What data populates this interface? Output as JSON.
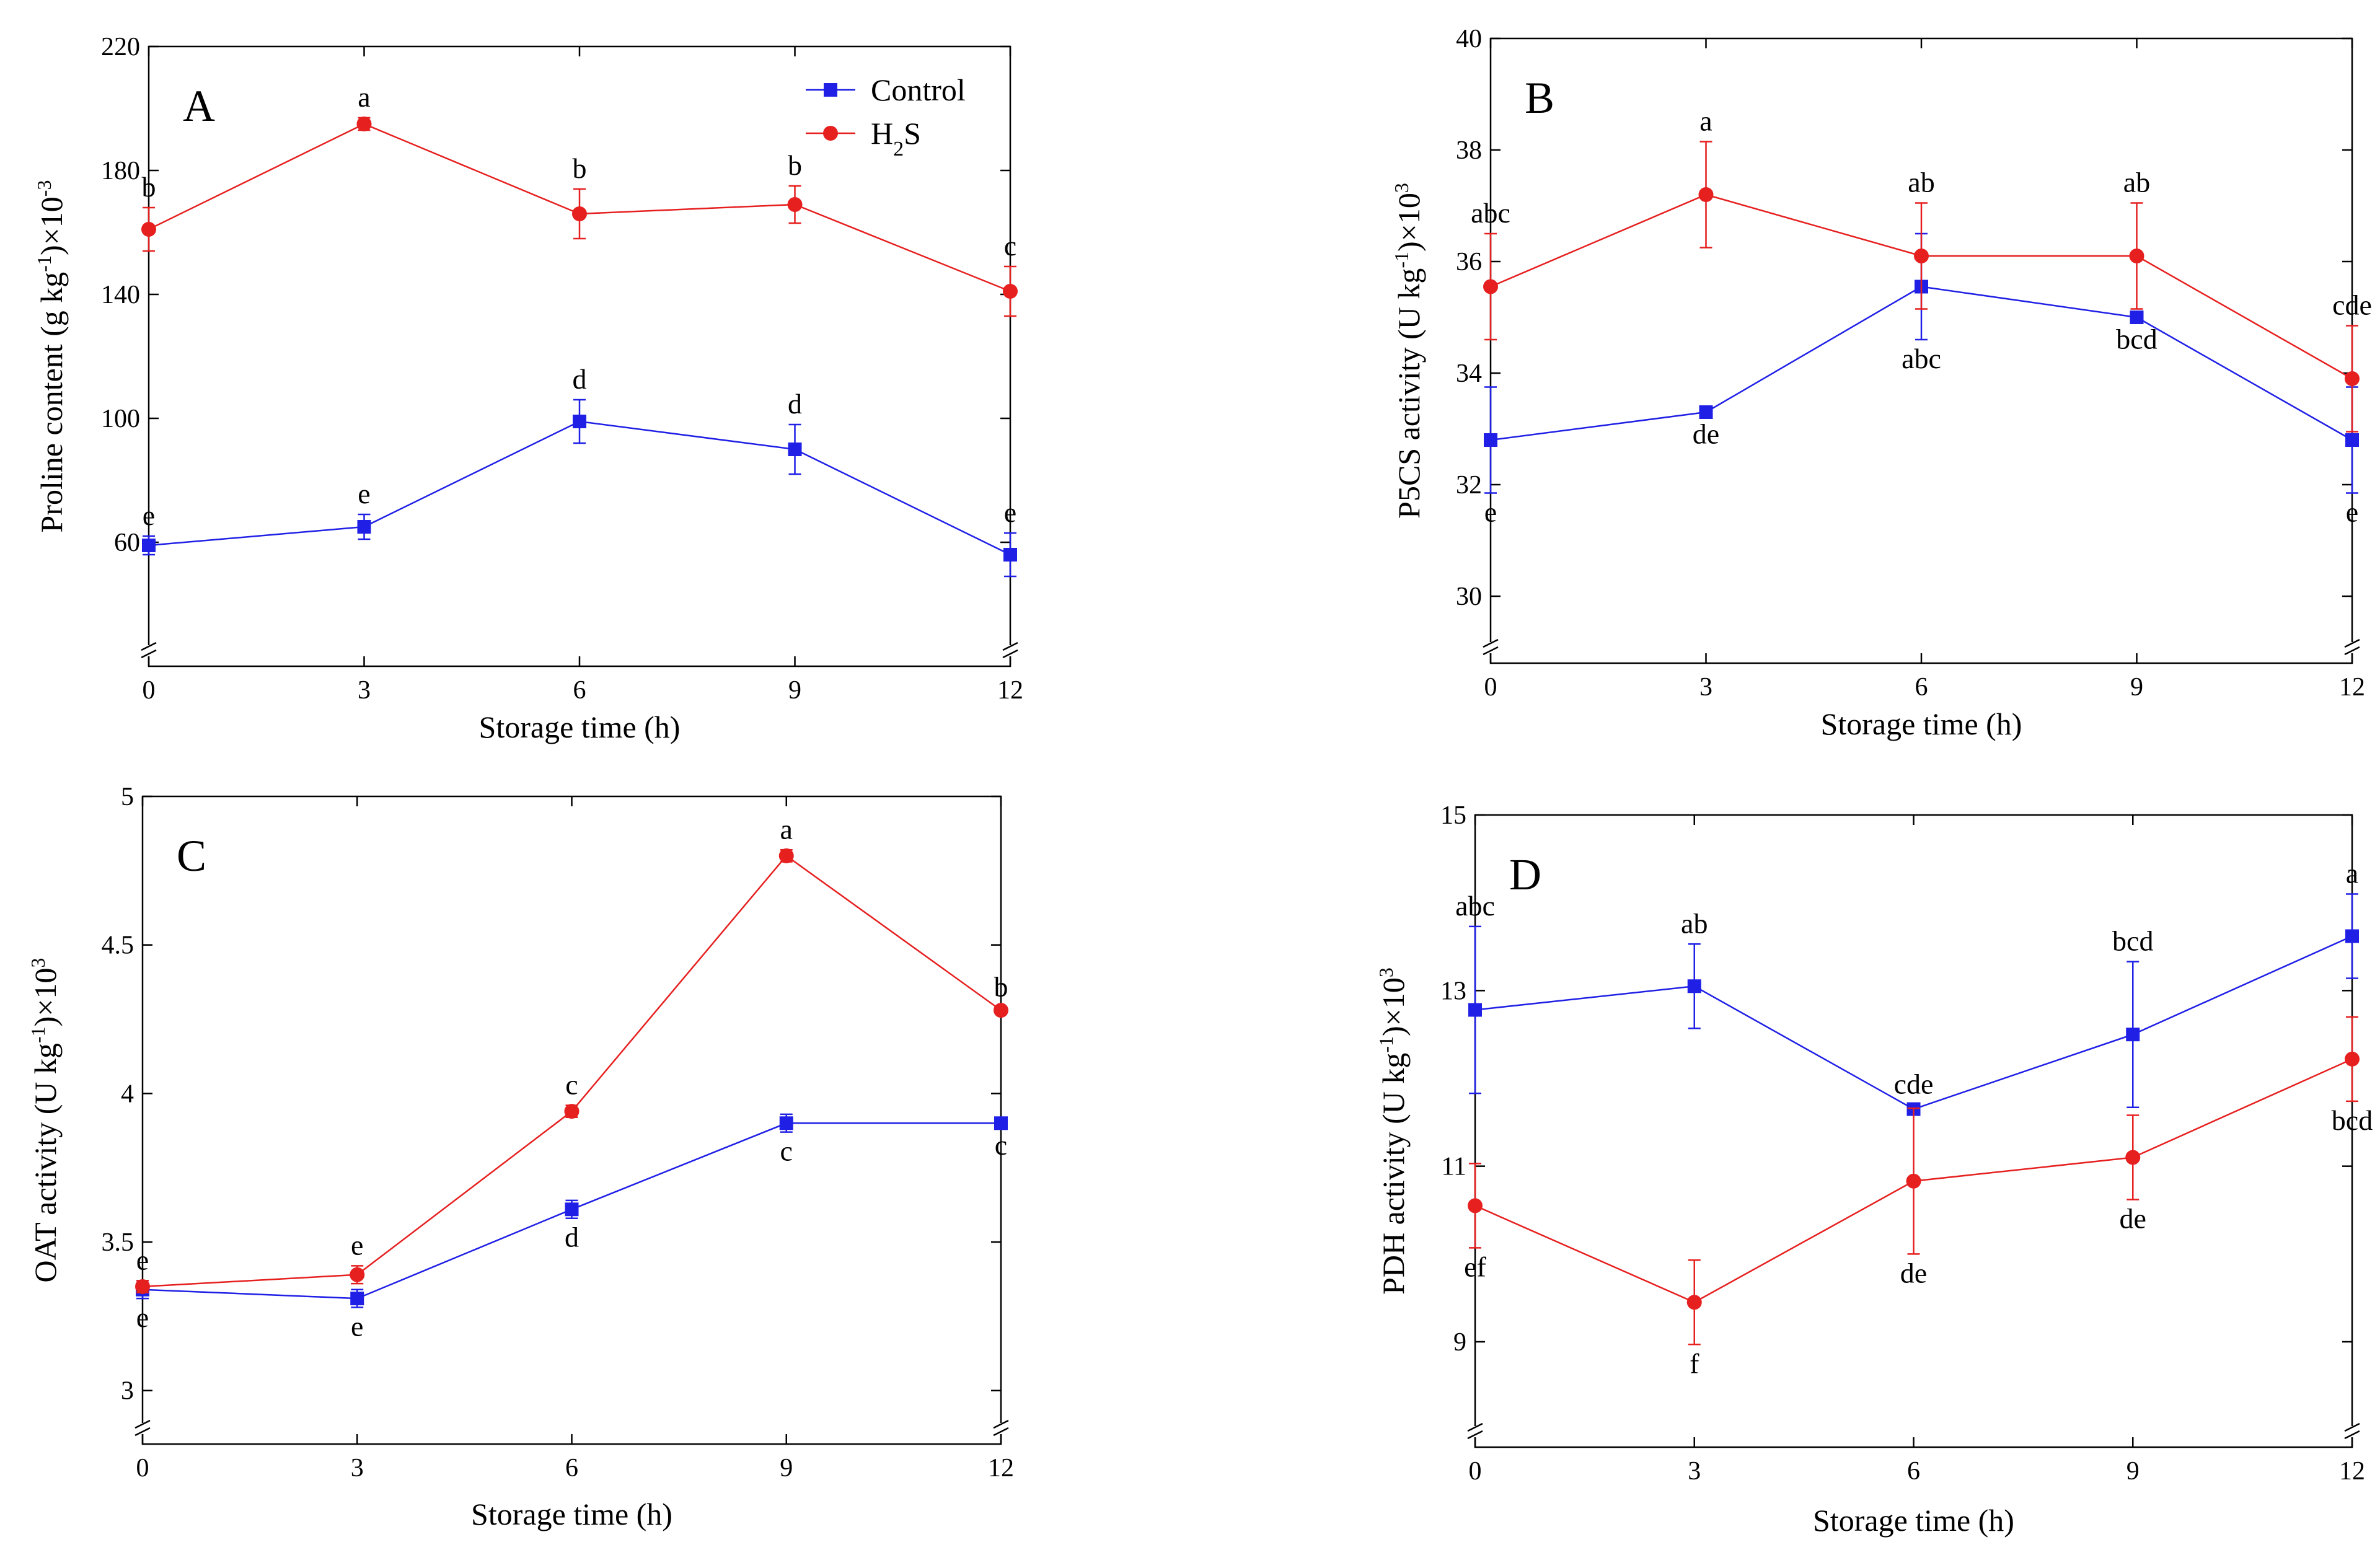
{
  "chart_data": [
    {
      "type": "line",
      "panel": "A",
      "xlabel": "Storage time (h)",
      "ylabel_parts": [
        "Proline content (g kg",
        "-1",
        ")×10",
        "-3"
      ],
      "x": [
        0,
        3,
        6,
        9,
        12
      ],
      "xlim": [
        0,
        12
      ],
      "ylim": [
        20,
        220
      ],
      "yticks": [
        60,
        100,
        140,
        180,
        220
      ],
      "legend": [
        "Control",
        "H2S"
      ],
      "series": [
        {
          "name": "Control",
          "color": "#1f1fe6",
          "marker": "square",
          "values": [
            59,
            65,
            99,
            90,
            56
          ],
          "err": [
            3,
            4,
            7,
            8,
            7
          ],
          "labels": [
            "e",
            "e",
            "d",
            "d",
            "e"
          ],
          "label_pos": [
            "above",
            "above",
            "above",
            "above",
            "above"
          ]
        },
        {
          "name": "H2S",
          "color": "#e61f1f",
          "marker": "circle",
          "values": [
            161,
            195,
            166,
            169,
            141
          ],
          "err": [
            7,
            2,
            8,
            6,
            8
          ],
          "labels": [
            "b",
            "a",
            "b",
            "b",
            "c"
          ],
          "label_pos": [
            "above",
            "above",
            "above",
            "above",
            "above"
          ]
        }
      ]
    },
    {
      "type": "line",
      "panel": "B",
      "xlabel": "Storage time (h)",
      "ylabel_parts": [
        "P5CS activity (U kg",
        "-1",
        ")×10",
        "3"
      ],
      "x": [
        0,
        3,
        6,
        9,
        12
      ],
      "xlim": [
        0,
        12
      ],
      "ylim": [
        28.8,
        40
      ],
      "yticks": [
        30,
        32,
        34,
        36,
        38,
        40
      ],
      "series": [
        {
          "name": "Control",
          "color": "#1f1fe6",
          "marker": "square",
          "values": [
            32.8,
            33.3,
            35.55,
            35.0,
            32.8
          ],
          "err": [
            0.95,
            0.05,
            0.95,
            0.05,
            0.95
          ],
          "labels": [
            "e",
            "de",
            "abc",
            "bcd",
            "e"
          ],
          "label_pos": [
            "below",
            "below",
            "below",
            "below",
            "below"
          ]
        },
        {
          "name": "H2S",
          "color": "#e61f1f",
          "marker": "circle",
          "values": [
            35.55,
            37.2,
            36.1,
            36.1,
            33.9
          ],
          "err": [
            0.95,
            0.95,
            0.95,
            0.95,
            0.95
          ],
          "labels": [
            "abc",
            "a",
            "ab",
            "ab",
            "cde"
          ],
          "label_pos": [
            "above",
            "above",
            "above",
            "above",
            "above"
          ]
        }
      ]
    },
    {
      "type": "line",
      "panel": "C",
      "xlabel": "Storage time (h)",
      "ylabel_parts": [
        "OAT activity (U kg",
        "-1",
        ")×10",
        "3"
      ],
      "x": [
        0,
        3,
        6,
        9,
        12
      ],
      "xlim": [
        0,
        12
      ],
      "ylim": [
        2.82,
        5
      ],
      "yticks": [
        3,
        3.5,
        4,
        4.5,
        5
      ],
      "series": [
        {
          "name": "Control",
          "color": "#1f1fe6",
          "marker": "square",
          "values": [
            3.34,
            3.31,
            3.61,
            3.9,
            3.9
          ],
          "err": [
            0.03,
            0.03,
            0.03,
            0.03,
            0.01
          ],
          "labels": [
            "e",
            "e",
            "d",
            "c",
            "c"
          ],
          "label_pos": [
            "below",
            "below",
            "below",
            "below",
            "below"
          ]
        },
        {
          "name": "H2S",
          "color": "#e61f1f",
          "marker": "circle",
          "values": [
            3.35,
            3.39,
            3.94,
            4.8,
            4.28
          ],
          "err": [
            0.02,
            0.03,
            0.02,
            0.02,
            0.01
          ],
          "labels": [
            "e",
            "e",
            "c",
            "a",
            "b"
          ],
          "label_pos": [
            "above",
            "above",
            "above",
            "above",
            "above"
          ]
        }
      ]
    },
    {
      "type": "line",
      "panel": "D",
      "xlabel": "Storage time (h)",
      "ylabel_parts": [
        "PDH activity (U kg",
        "-1",
        ")×10",
        "3"
      ],
      "x": [
        0,
        3,
        6,
        9,
        12
      ],
      "xlim": [
        0,
        12
      ],
      "ylim": [
        7.8,
        15
      ],
      "yticks": [
        9,
        11,
        13,
        15
      ],
      "series": [
        {
          "name": "Control",
          "color": "#1f1fe6",
          "marker": "square",
          "values": [
            12.78,
            13.05,
            11.65,
            12.5,
            13.62
          ],
          "err": [
            0.95,
            0.48,
            0.05,
            0.83,
            0.48
          ],
          "labels": [
            "abc",
            "ab",
            "cde",
            "bcd",
            "a"
          ],
          "label_pos": [
            "above",
            "above",
            "above",
            "above",
            "above"
          ]
        },
        {
          "name": "H2S",
          "color": "#e61f1f",
          "marker": "circle",
          "values": [
            10.55,
            9.45,
            10.83,
            11.1,
            12.22
          ],
          "err": [
            0.48,
            0.48,
            0.83,
            0.48,
            0.48
          ],
          "labels": [
            "ef",
            "f",
            "de",
            "de",
            "bcd"
          ],
          "label_pos": [
            "below",
            "below",
            "below",
            "below",
            "below"
          ]
        }
      ]
    }
  ]
}
